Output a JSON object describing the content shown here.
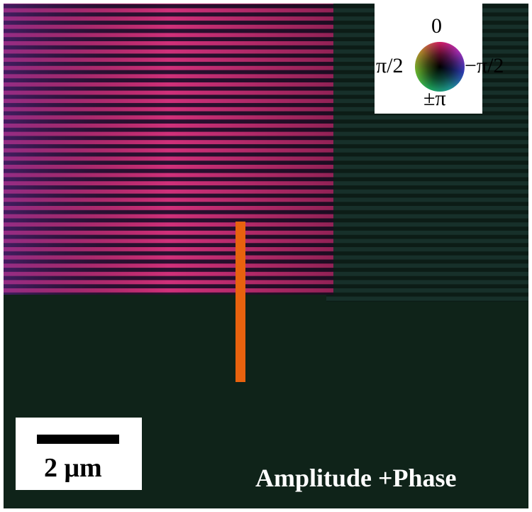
{
  "phase_legend": {
    "top": "0",
    "left": "π/2",
    "right": "−π/2",
    "bottom": "±π"
  },
  "scale_bar": {
    "label": "2 μm"
  },
  "caption": "Amplitude +Phase"
}
